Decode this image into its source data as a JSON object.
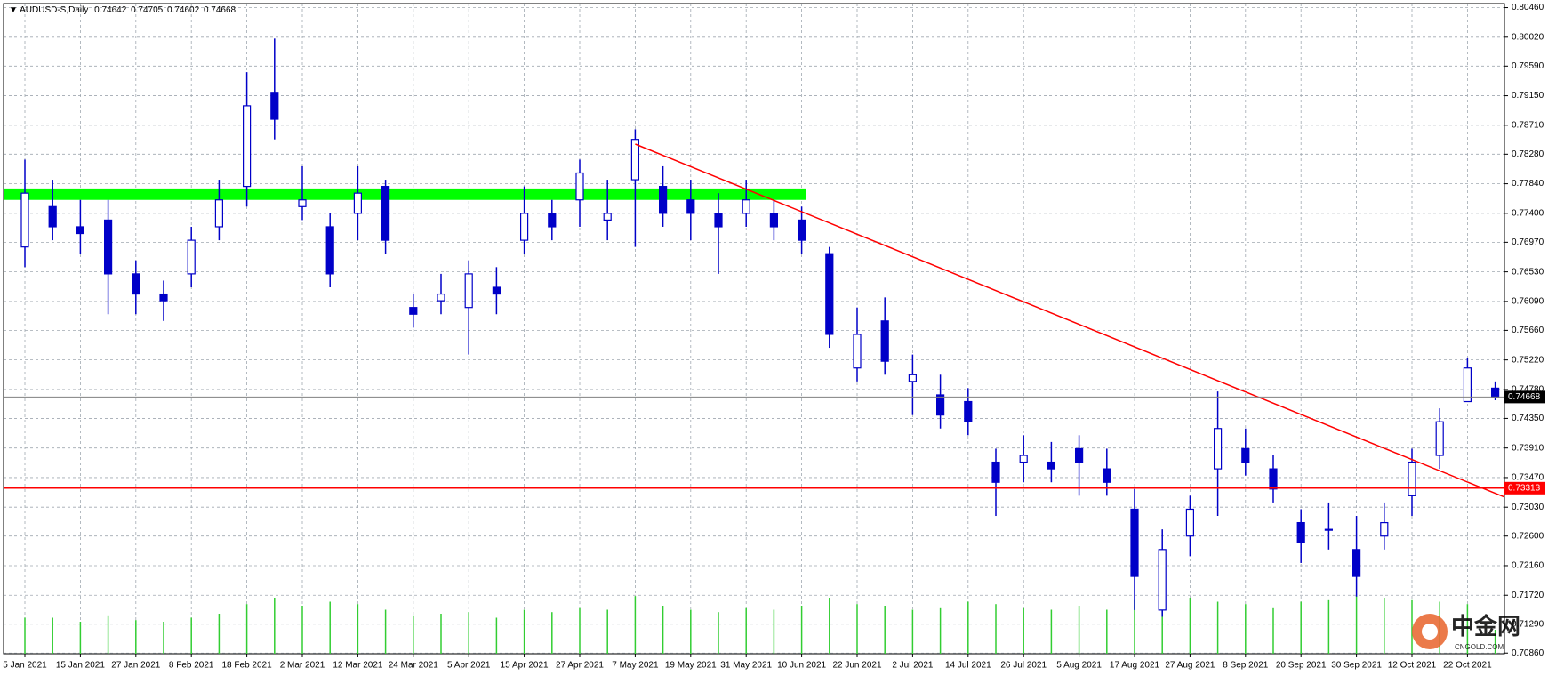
{
  "chart_data": {
    "type": "candlestick",
    "header": {
      "symbol": "AUDUSD-S,Daily",
      "values": [
        0.74642,
        0.74705,
        0.74602,
        0.74668
      ]
    },
    "categories": [
      "5 Jan 2021",
      null,
      "15 Jan 2021",
      null,
      "27 Jan 2021",
      null,
      "8 Feb 2021",
      null,
      "18 Feb 2021",
      null,
      "2 Mar 2021",
      null,
      "12 Mar 2021",
      null,
      "24 Mar 2021",
      null,
      "5 Apr 2021",
      null,
      "15 Apr 2021",
      null,
      "27 Apr 2021",
      null,
      "7 May 2021",
      null,
      "19 May 2021",
      null,
      "31 May 2021",
      null,
      "10 Jun 2021",
      null,
      "22 Jun 2021",
      null,
      "2 Jul 2021",
      null,
      "14 Jul 2021",
      null,
      "26 Jul 2021",
      null,
      "5 Aug 2021",
      null,
      "17 Aug 2021",
      null,
      "27 Aug 2021",
      null,
      "8 Sep 2021",
      null,
      "20 Sep 2021",
      null,
      "30 Sep 2021",
      null,
      "12 Oct 2021",
      null,
      "22 Oct 2021",
      null
    ],
    "open": [
      0.769,
      0.775,
      0.772,
      0.773,
      0.765,
      0.762,
      0.765,
      0.772,
      0.778,
      0.792,
      0.775,
      0.772,
      0.774,
      0.778,
      0.76,
      0.761,
      0.76,
      0.763,
      0.77,
      0.774,
      0.776,
      0.773,
      0.779,
      0.778,
      0.776,
      0.774,
      0.774,
      0.774,
      0.773,
      0.768,
      0.751,
      0.758,
      0.749,
      0.747,
      0.746,
      0.737,
      0.737,
      0.737,
      0.739,
      0.736,
      0.73,
      0.715,
      0.726,
      0.736,
      0.739,
      0.736,
      0.728,
      0.727,
      0.724,
      0.726,
      0.732,
      0.738,
      0.746,
      0.748
    ],
    "high": [
      0.782,
      0.779,
      0.776,
      0.776,
      0.767,
      0.764,
      0.772,
      0.779,
      0.795,
      0.8,
      0.781,
      0.774,
      0.781,
      0.779,
      0.762,
      0.765,
      0.767,
      0.766,
      0.778,
      0.776,
      0.782,
      0.779,
      0.7865,
      0.781,
      0.779,
      0.777,
      0.779,
      0.776,
      0.775,
      0.769,
      0.76,
      0.7615,
      0.753,
      0.75,
      0.748,
      0.739,
      0.741,
      0.74,
      0.741,
      0.739,
      0.733,
      0.727,
      0.732,
      0.7475,
      0.742,
      0.738,
      0.73,
      0.731,
      0.729,
      0.731,
      0.739,
      0.745,
      0.7525,
      0.749
    ],
    "low": [
      0.766,
      0.77,
      0.768,
      0.759,
      0.759,
      0.758,
      0.763,
      0.77,
      0.775,
      0.785,
      0.773,
      0.763,
      0.77,
      0.768,
      0.757,
      0.759,
      0.753,
      0.759,
      0.768,
      0.77,
      0.772,
      0.77,
      0.769,
      0.772,
      0.77,
      0.765,
      0.772,
      0.77,
      0.768,
      0.754,
      0.749,
      0.75,
      0.744,
      0.742,
      0.741,
      0.729,
      0.734,
      0.734,
      0.732,
      0.732,
      0.715,
      0.714,
      0.723,
      0.729,
      0.735,
      0.731,
      0.722,
      0.724,
      0.717,
      0.724,
      0.729,
      0.736,
      0.746,
      0.7462
    ],
    "close": [
      0.777,
      0.772,
      0.771,
      0.765,
      0.762,
      0.761,
      0.77,
      0.776,
      0.79,
      0.788,
      0.776,
      0.765,
      0.777,
      0.77,
      0.759,
      0.762,
      0.765,
      0.762,
      0.774,
      0.772,
      0.78,
      0.774,
      0.785,
      0.774,
      0.774,
      0.772,
      0.776,
      0.772,
      0.77,
      0.756,
      0.756,
      0.752,
      0.75,
      0.744,
      0.743,
      0.734,
      0.738,
      0.736,
      0.737,
      0.734,
      0.72,
      0.724,
      0.73,
      0.742,
      0.737,
      0.733,
      0.725,
      0.727,
      0.72,
      0.728,
      0.737,
      0.743,
      0.751,
      0.7466
    ],
    "volume": [
      45,
      45,
      40,
      48,
      42,
      40,
      45,
      50,
      62,
      70,
      60,
      65,
      62,
      55,
      48,
      50,
      52,
      45,
      55,
      52,
      58,
      55,
      72,
      60,
      55,
      52,
      58,
      55,
      60,
      70,
      62,
      60,
      55,
      58,
      65,
      62,
      58,
      55,
      60,
      55,
      68,
      75,
      70,
      65,
      62,
      58,
      65,
      68,
      72,
      70,
      68,
      65,
      62,
      30
    ],
    "vlim": [
      0,
      100
    ],
    "candle_color": "#0000c8",
    "volume_color": "#32cd32",
    "ylim": [
      0.7085,
      0.8052
    ],
    "yticks": [
      {
        "value": 0.8046,
        "label": "0.80460"
      },
      {
        "value": 0.8002,
        "label": "0.80020"
      },
      {
        "value": 0.7959,
        "label": "0.79590"
      },
      {
        "value": 0.7915,
        "label": "0.79150"
      },
      {
        "value": 0.7871,
        "label": "0.78710"
      },
      {
        "value": 0.7828,
        "label": "0.78280"
      },
      {
        "value": 0.7784,
        "label": "0.77840"
      },
      {
        "value": 0.774,
        "label": "0.77400"
      },
      {
        "value": 0.7697,
        "label": "0.76970"
      },
      {
        "value": 0.7653,
        "label": "0.76530"
      },
      {
        "value": 0.7609,
        "label": "0.76090"
      },
      {
        "value": 0.7566,
        "label": "0.75660"
      },
      {
        "value": 0.7522,
        "label": "0.75220"
      },
      {
        "value": 0.7478,
        "label": "0.74780"
      },
      {
        "value": 0.7435,
        "label": "0.74350"
      },
      {
        "value": 0.7391,
        "label": "0.73910"
      },
      {
        "value": 0.7347,
        "label": "0.73470"
      },
      {
        "value": 0.7303,
        "label": "0.73030"
      },
      {
        "value": 0.726,
        "label": "0.72600"
      },
      {
        "value": 0.7216,
        "label": "0.72160"
      },
      {
        "value": 0.7172,
        "label": "0.71720"
      },
      {
        "value": 0.7129,
        "label": "0.71290"
      },
      {
        "value": 0.7086,
        "label": "0.70860"
      }
    ],
    "grid": true,
    "zone": {
      "color": "#00ff00",
      "values": [
        0.776,
        0.7777
      ]
    },
    "trendline": {
      "color": "#ff0000",
      "values": [
        0.7843,
        0.7318
      ]
    },
    "support": {
      "color": "#ff0000",
      "value": 0.73313
    },
    "current_price": {
      "color": "#000000",
      "value": 0.74668
    },
    "watermark": {
      "name": "中金网",
      "site": "CNGOLD.COM"
    }
  }
}
